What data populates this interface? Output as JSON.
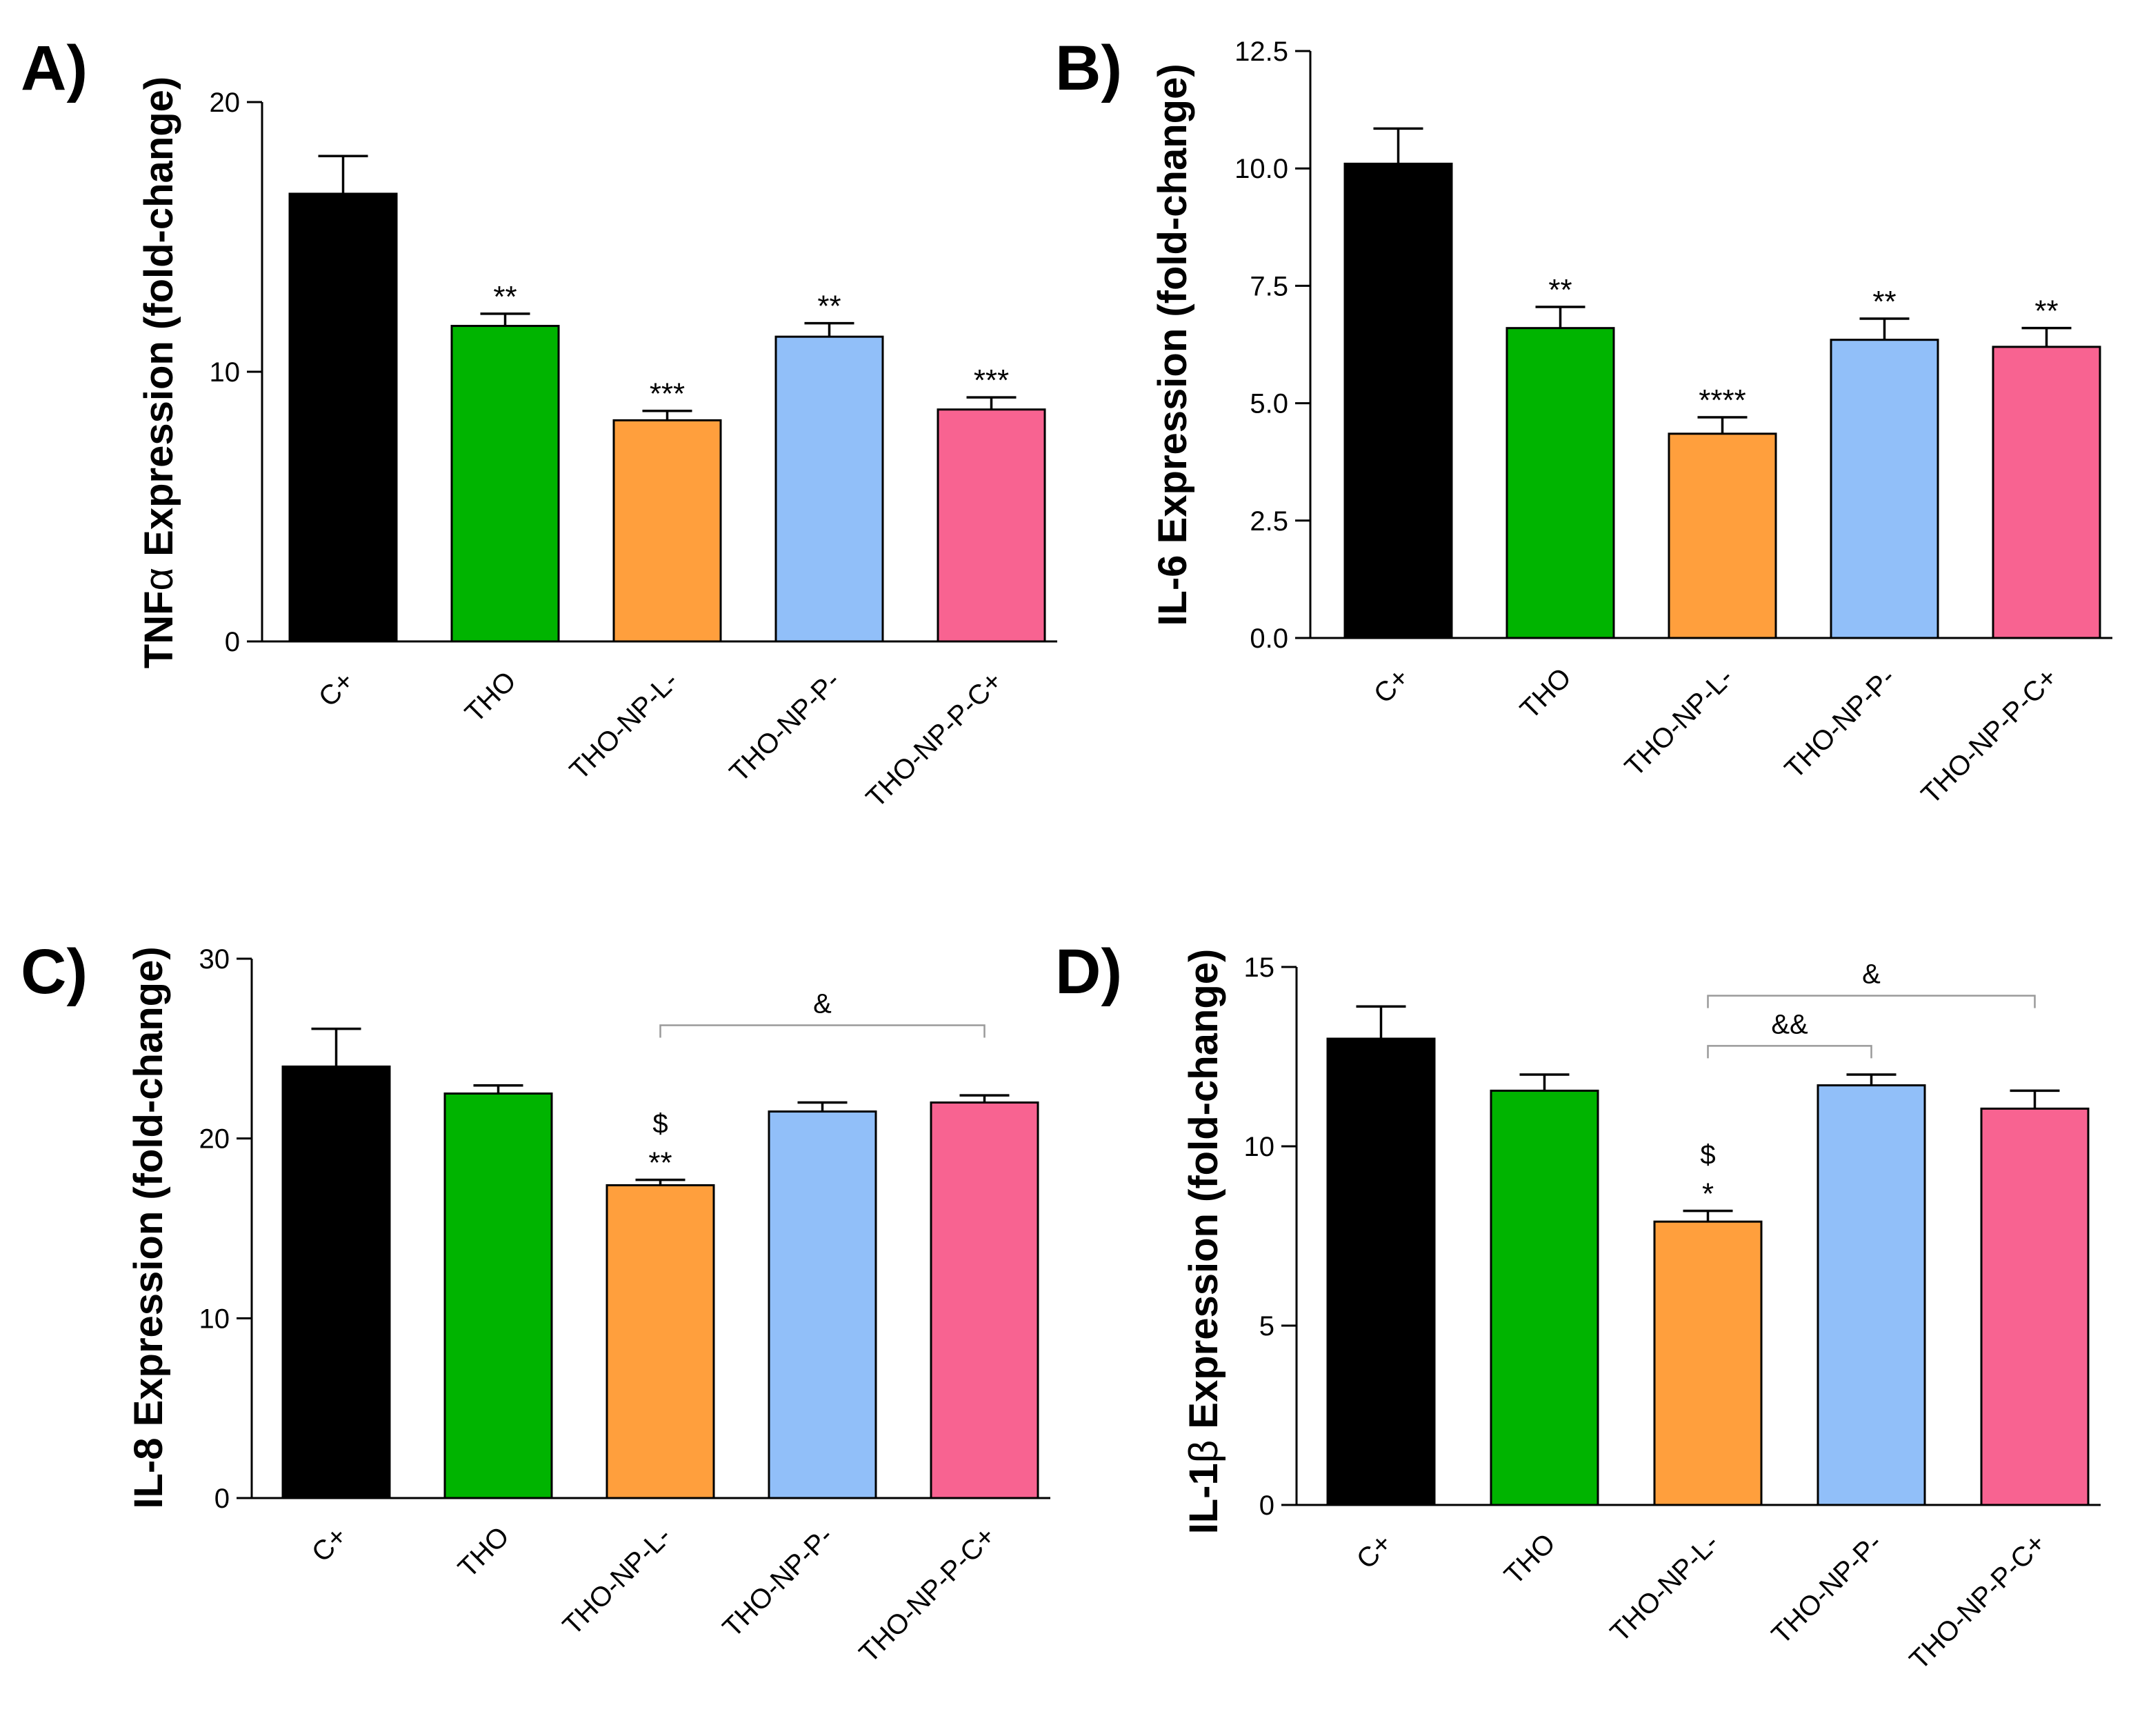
{
  "colors": {
    "C+": "#000000",
    "THO": "#00b400",
    "THO-NP-L-": "#ff9f3d",
    "THO-NP-P-": "#91bff9",
    "THO-NP-P-C+": "#f86391"
  },
  "chart_data": [
    {
      "type": "bar",
      "panel": "A)",
      "ylabel_prefix": "TNF",
      "ylabel_greek": "α",
      "ylabel_suffix": " Expression (fold-change)",
      "categories": [
        "C+",
        "THO",
        "THO-NP-L-",
        "THO-NP-P-",
        "THO-NP-P-C+"
      ],
      "values": [
        16.6,
        11.7,
        8.2,
        11.3,
        8.6
      ],
      "errors": [
        1.4,
        0.45,
        0.35,
        0.5,
        0.45
      ],
      "ylim": [
        0,
        20
      ],
      "yticks": [
        "0",
        "10",
        "20"
      ],
      "ytick_values": [
        0,
        10,
        20
      ],
      "annotations": [
        "",
        "**",
        "***",
        "**",
        "***"
      ],
      "symbols": [
        "",
        "",
        "",
        "",
        ""
      ],
      "brackets": []
    },
    {
      "type": "bar",
      "panel": "B)",
      "ylabel_prefix": "IL-6",
      "ylabel_greek": "",
      "ylabel_suffix": " Expression (fold-change)",
      "categories": [
        "C+",
        "THO",
        "THO-NP-L-",
        "THO-NP-P-",
        "THO-NP-P-C+"
      ],
      "values": [
        10.1,
        6.6,
        4.35,
        6.35,
        6.2
      ],
      "errors": [
        0.75,
        0.45,
        0.35,
        0.45,
        0.4
      ],
      "ylim": [
        0,
        12.5
      ],
      "yticks": [
        "0.0",
        "2.5",
        "5.0",
        "7.5",
        "10.0",
        "12.5"
      ],
      "ytick_values": [
        0,
        2.5,
        5,
        7.5,
        10,
        12.5
      ],
      "annotations": [
        "",
        "**",
        "****",
        "**",
        "**"
      ],
      "symbols": [
        "",
        "",
        "",
        "",
        ""
      ],
      "brackets": []
    },
    {
      "type": "bar",
      "panel": "C)",
      "ylabel_prefix": "IL-8",
      "ylabel_greek": "",
      "ylabel_suffix": " Expression (fold-change)",
      "categories": [
        "C+",
        "THO",
        "THO-NP-L-",
        "THO-NP-P-",
        "THO-NP-P-C+"
      ],
      "values": [
        24.0,
        22.5,
        17.4,
        21.5,
        22.0
      ],
      "errors": [
        2.1,
        0.45,
        0.3,
        0.5,
        0.4
      ],
      "ylim": [
        0,
        30
      ],
      "yticks": [
        "0",
        "10",
        "20",
        "30"
      ],
      "ytick_values": [
        0,
        10,
        20,
        30
      ],
      "annotations": [
        "",
        "",
        "**",
        "",
        ""
      ],
      "symbols": [
        "",
        "",
        "$",
        "",
        ""
      ],
      "brackets": [
        {
          "from": 2,
          "to": 4,
          "label": "&",
          "y_value": 26.3
        }
      ]
    },
    {
      "type": "bar",
      "panel": "D)",
      "ylabel_prefix": "IL-1",
      "ylabel_greek": "β",
      "ylabel_suffix": " Expression (fold-change)",
      "categories": [
        "C+",
        "THO",
        "THO-NP-L-",
        "THO-NP-P-",
        "THO-NP-P-C+"
      ],
      "values": [
        13.0,
        11.55,
        7.9,
        11.7,
        11.05
      ],
      "errors": [
        0.9,
        0.45,
        0.3,
        0.3,
        0.5
      ],
      "ylim": [
        0,
        15
      ],
      "yticks": [
        "0",
        "5",
        "10",
        "15"
      ],
      "ytick_values": [
        0,
        5,
        10,
        15
      ],
      "annotations": [
        "",
        "",
        "*",
        "",
        ""
      ],
      "symbols": [
        "",
        "",
        "$",
        "",
        ""
      ],
      "brackets": [
        {
          "from": 2,
          "to": 3,
          "label": "&&",
          "y_value": 12.8
        },
        {
          "from": 2,
          "to": 4,
          "label": "&",
          "y_value": 14.2
        }
      ]
    }
  ]
}
